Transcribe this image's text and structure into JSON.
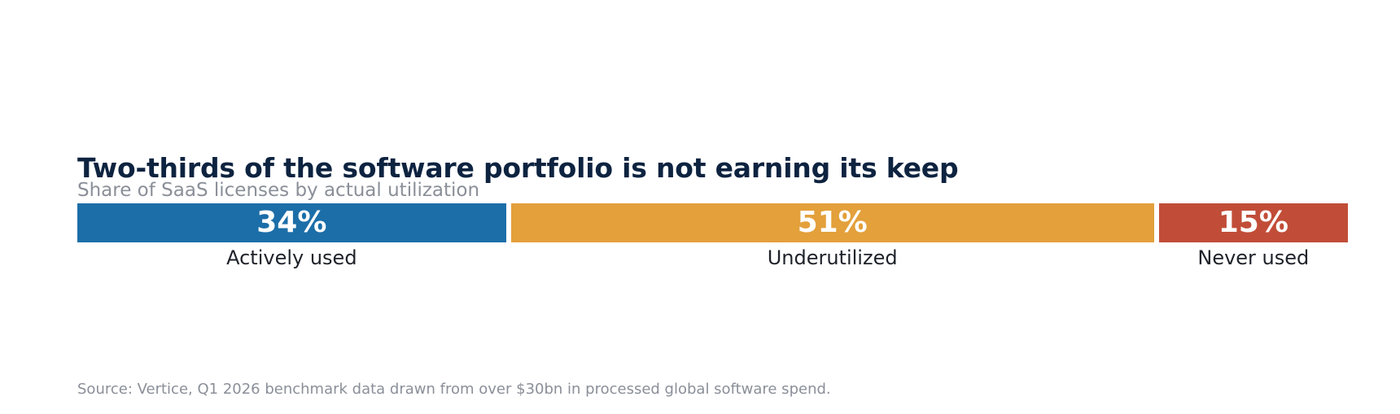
{
  "chart_data": {
    "type": "bar",
    "orientation": "horizontal-stacked-100",
    "title": "Two-thirds of the software portfolio is not earning its keep",
    "subtitle": "Share of SaaS licenses by actual utilization",
    "categories": [
      "Actively used",
      "Underutilized",
      "Never used"
    ],
    "values": [
      34,
      51,
      15
    ],
    "value_labels": [
      "34%",
      "51%",
      "15%"
    ],
    "colors": [
      "#1c6ea8",
      "#e3a03b",
      "#c14d38"
    ],
    "source": "Source: Vertice, Q1 2026 benchmark data drawn from over $30bn in processed global software spend."
  }
}
